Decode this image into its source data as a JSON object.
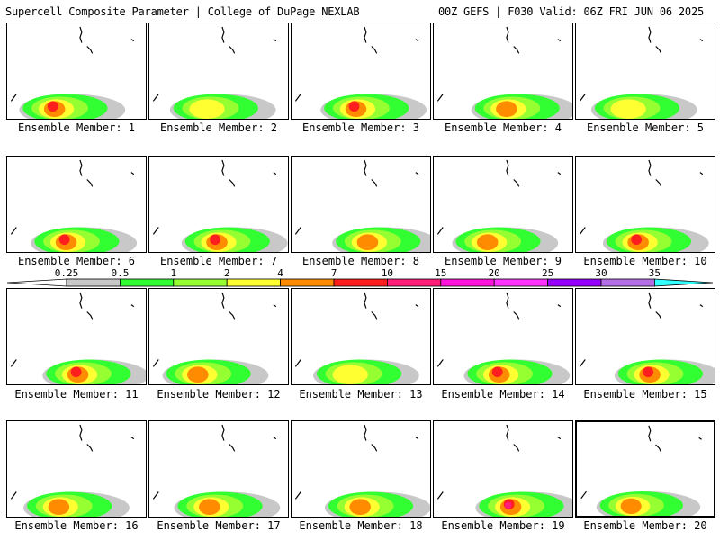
{
  "header": {
    "left": "Supercell Composite Parameter | College of DuPage NEXLAB",
    "right": "00Z GEFS | F030 Valid: 06Z FRI JUN 06 2025"
  },
  "legend": {
    "tick_labels": [
      "0.25",
      "0.5",
      "1",
      "2",
      "4",
      "7",
      "10",
      "15",
      "20",
      "25",
      "30",
      "35"
    ],
    "colors": [
      "#ffffff",
      "#c8c8c8",
      "#32ff32",
      "#96ff32",
      "#ffff32",
      "#ff8c00",
      "#ff1e1e",
      "#ff1e78",
      "#ff14dc",
      "#ff32ff",
      "#9600ff",
      "#b46ee6",
      "#32ffff"
    ]
  },
  "panels": [
    {
      "label": "Ensemble Member: 1",
      "max_level": 6
    },
    {
      "label": "Ensemble Member: 2",
      "max_level": 4
    },
    {
      "label": "Ensemble Member: 3",
      "max_level": 6
    },
    {
      "label": "Ensemble Member: 4",
      "max_level": 5
    },
    {
      "label": "Ensemble Member: 5",
      "max_level": 4
    },
    {
      "label": "Ensemble Member: 6",
      "max_level": 6
    },
    {
      "label": "Ensemble Member: 7",
      "max_level": 6
    },
    {
      "label": "Ensemble Member: 8",
      "max_level": 5
    },
    {
      "label": "Ensemble Member: 9",
      "max_level": 5
    },
    {
      "label": "Ensemble Member: 10",
      "max_level": 6
    },
    {
      "label": "Ensemble Member: 11",
      "max_level": 6
    },
    {
      "label": "Ensemble Member: 12",
      "max_level": 5
    },
    {
      "label": "Ensemble Member: 13",
      "max_level": 4
    },
    {
      "label": "Ensemble Member: 14",
      "max_level": 6
    },
    {
      "label": "Ensemble Member: 15",
      "max_level": 6
    },
    {
      "label": "Ensemble Member: 16",
      "max_level": 5
    },
    {
      "label": "Ensemble Member: 17",
      "max_level": 5
    },
    {
      "label": "Ensemble Member: 18",
      "max_level": 5
    },
    {
      "label": "Ensemble Member: 19",
      "max_level": 7
    },
    {
      "label": "Ensemble Member: 20",
      "max_level": 5,
      "selected": true
    }
  ]
}
